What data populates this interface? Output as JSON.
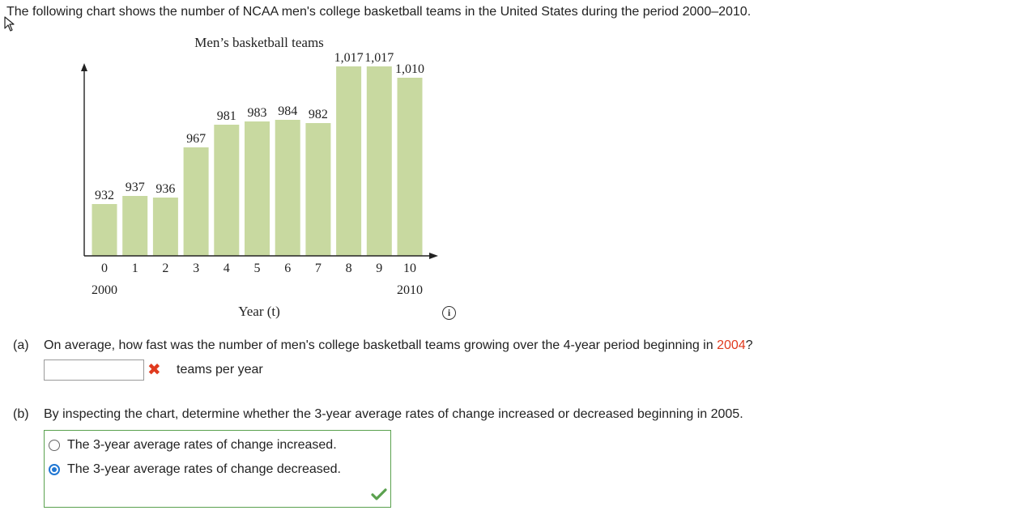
{
  "intro_text": "The following chart shows the number of NCAA men's college basketball teams in the United States during the period 2000–2010.",
  "colors": {
    "bar": "#c8d9a0",
    "accent_red": "#e03a1e",
    "selected_blue": "#1f76d3",
    "correct_green": "#5aa14e"
  },
  "chart_data": {
    "type": "bar",
    "title": "Men’s basketball teams",
    "xlabel": "Year (t)",
    "ylabel": "",
    "categories": [
      "0",
      "1",
      "2",
      "3",
      "4",
      "5",
      "6",
      "7",
      "8",
      "9",
      "10"
    ],
    "values": [
      932,
      937,
      936,
      967,
      981,
      983,
      984,
      982,
      1017,
      1017,
      1010
    ],
    "value_labels": [
      "932",
      "937",
      "936",
      "967",
      "981",
      "983",
      "984",
      "982",
      "1,017",
      "1,017",
      "1,010"
    ],
    "year_labels": [
      {
        "index": 0,
        "text": "2000"
      },
      {
        "index": 10,
        "text": "2010"
      }
    ],
    "grid": false
  },
  "part_a": {
    "tag": "(a)",
    "question_pre": "On average, how fast was the number of men's college basketball teams growing over the 4-year period beginning in ",
    "question_year": "2004",
    "question_post": "?",
    "answer_value": "",
    "unit": "teams per year",
    "status_icon": "x-mark-icon"
  },
  "part_b": {
    "tag": "(b)",
    "question": "By inspecting the chart, determine whether the 3-year average rates of change increased or decreased beginning in 2005.",
    "options": [
      {
        "label": "The 3-year average rates of change increased.",
        "selected": false
      },
      {
        "label": "The 3-year average rates of change decreased.",
        "selected": true
      }
    ],
    "status_icon": "check-mark-icon"
  },
  "info_icon_glyph": "i"
}
